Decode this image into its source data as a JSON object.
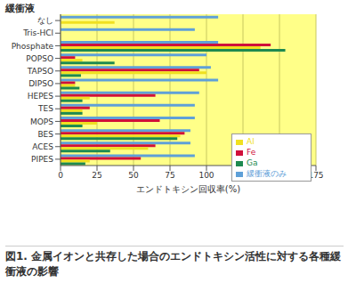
{
  "chart_data": {
    "type": "bar",
    "orientation": "horizontal",
    "title": "図1. 金属イオンと共存した場合のエンドトキシン活性に対する各種緩衝液の影響",
    "x_label": "エンドトキシン回収率(%)",
    "y_label": "緩衝液",
    "categories": [
      "なし",
      "Tris-HCl",
      "Phosphate",
      "POPSO",
      "TAPSO",
      "DIPSO",
      "HEPES",
      "TES",
      "MOPS",
      "BES",
      "ACES",
      "PIPES"
    ],
    "series": [
      {
        "name": "緩衝液のみ",
        "color": "#5fa0d8",
        "values": [
          108,
          92,
          108,
          100,
          103,
          108,
          95,
          92,
          92,
          89,
          89,
          92
        ]
      },
      {
        "name": "Fe",
        "color": "#d0103a",
        "values": [
          0,
          0,
          144,
          10,
          95,
          10,
          65,
          20,
          68,
          85,
          65,
          55
        ]
      },
      {
        "name": "Al",
        "color": "#f0e020",
        "values": [
          37,
          0,
          137,
          15,
          100,
          10,
          20,
          15,
          25,
          82,
          60,
          20
        ]
      },
      {
        "name": "Ga",
        "color": "#1e8a50",
        "values": [
          0,
          0,
          154,
          37,
          14,
          13,
          15,
          15,
          15,
          80,
          34,
          17
        ]
      }
    ],
    "xlim": [
      0,
      175
    ],
    "xticks": [
      0,
      25,
      50,
      75,
      100,
      125,
      150,
      175
    ],
    "grid": true,
    "legend": "right"
  }
}
